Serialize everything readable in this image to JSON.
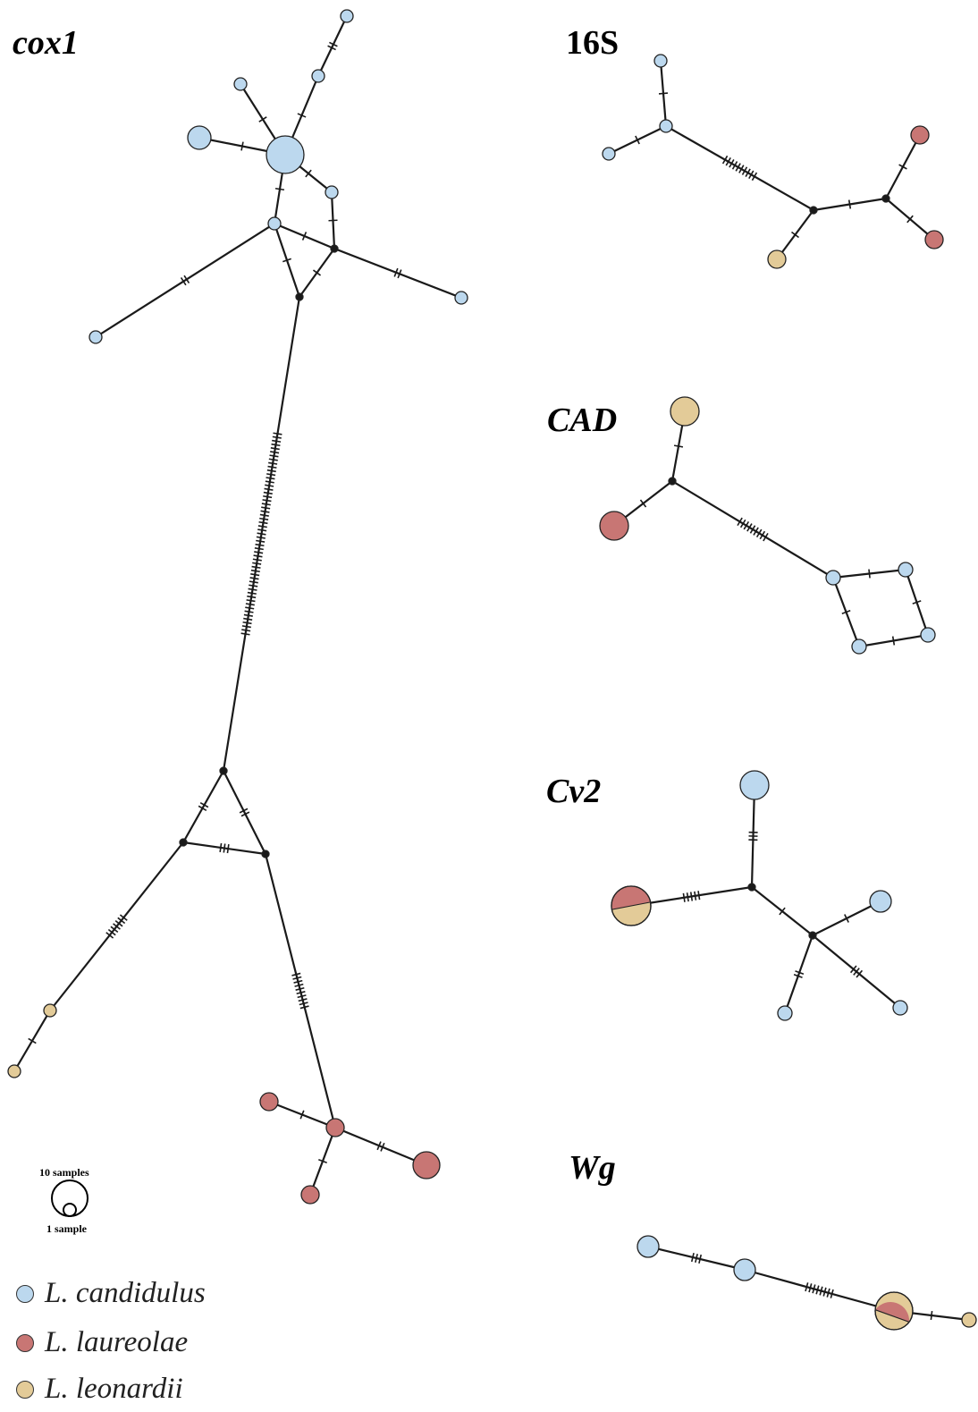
{
  "colors": {
    "candidulus": "#bcd8ee",
    "laureolae": "#c87674",
    "leonardii": "#e3cb98",
    "edge": "#1a1a1a",
    "median": "#1a1a1a"
  },
  "panels": {
    "cox1": "cox1",
    "s16": "16S",
    "cad": "CAD",
    "cv2": "Cv2",
    "wg": "Wg"
  },
  "scale": {
    "large": "10 samples",
    "small": "1 sample"
  },
  "legend": [
    {
      "species": "candidulus",
      "label": "L. candidulus",
      "color": "#bcd8ee"
    },
    {
      "species": "laureolae",
      "label": "L. laureolae",
      "color": "#c87674"
    },
    {
      "species": "leonardii",
      "label": "L. leonardii",
      "color": "#e3cb98"
    }
  ]
}
